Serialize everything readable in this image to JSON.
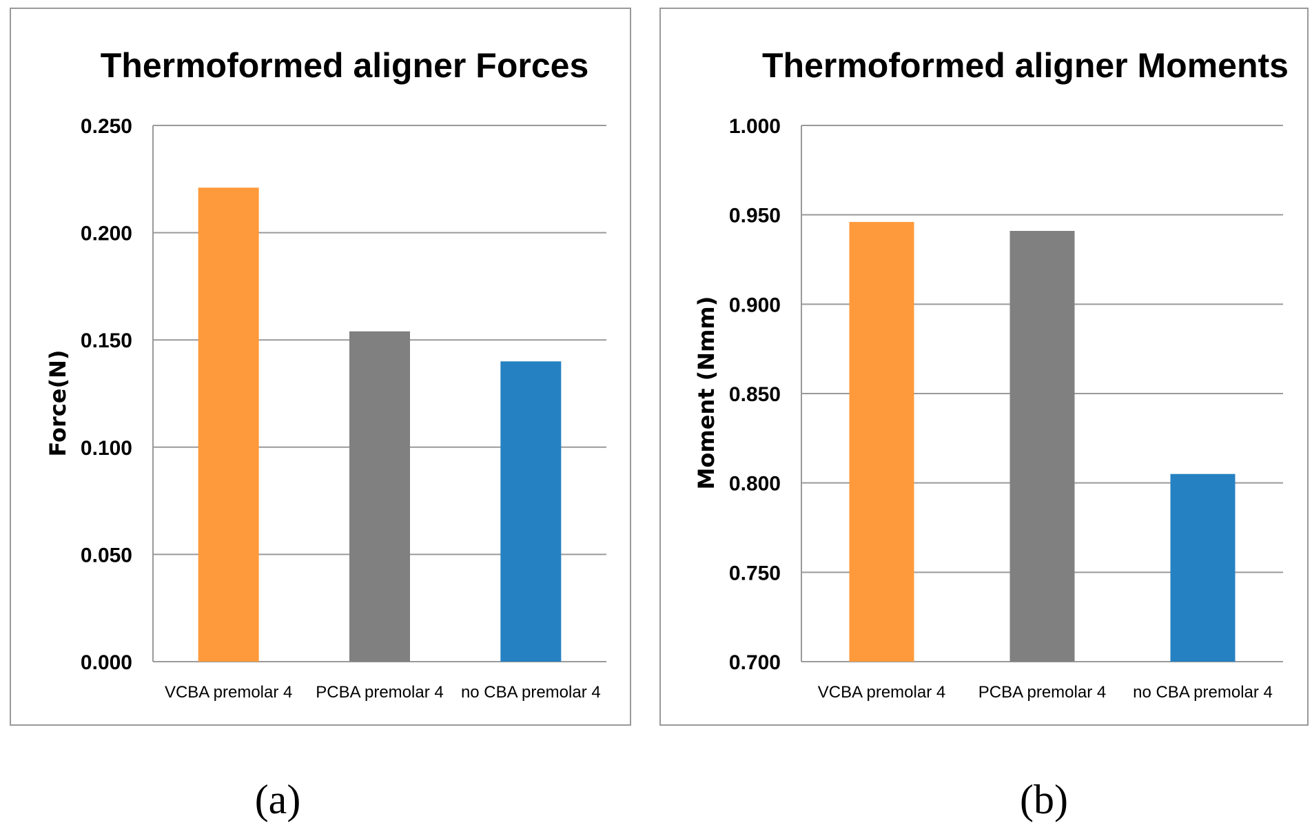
{
  "chart_data": [
    {
      "type": "bar",
      "title": "Thermoformed aligner Forces",
      "xlabel": "",
      "ylabel": "Force(N)",
      "categories": [
        "VCBA premolar 4",
        "PCBA premolar 4",
        "no CBA premolar 4"
      ],
      "values": [
        0.221,
        0.154,
        0.14
      ],
      "colors": [
        "#FF9A3C",
        "#808080",
        "#2681C2"
      ],
      "ylim": [
        0,
        0.25
      ],
      "yticks": [
        0.0,
        0.05,
        0.1,
        0.15,
        0.2,
        0.25
      ],
      "ytick_labels": [
        "0.000",
        "0.050",
        "0.100",
        "0.150",
        "0.200",
        "0.250"
      ],
      "grid": true,
      "panel_label": "(a)"
    },
    {
      "type": "bar",
      "title": "Thermoformed aligner Moments",
      "xlabel": "",
      "ylabel": "Moment (Nmm)",
      "categories": [
        "VCBA premolar 4",
        "PCBA premolar 4",
        "no CBA premolar 4"
      ],
      "values": [
        0.946,
        0.941,
        0.805
      ],
      "colors": [
        "#FF9A3C",
        "#808080",
        "#2681C2"
      ],
      "ylim": [
        0.7,
        1.0
      ],
      "yticks": [
        0.7,
        0.75,
        0.8,
        0.85,
        0.9,
        0.95,
        1.0
      ],
      "ytick_labels": [
        "0.700",
        "0.750",
        "0.800",
        "0.850",
        "0.900",
        "0.950",
        "1.000"
      ],
      "grid": true,
      "panel_label": "(b)"
    }
  ]
}
